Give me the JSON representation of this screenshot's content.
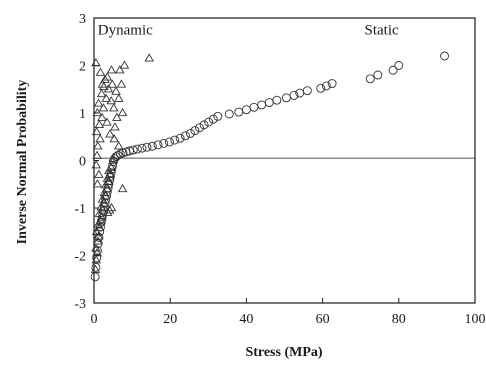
{
  "chart_data": {
    "type": "scatter",
    "title": "",
    "xlabel": "Stress (MPa)",
    "ylabel": "Inverse Normal Probability",
    "xlim": [
      0,
      100
    ],
    "ylim": [
      -3,
      3
    ],
    "xticks": [
      "0",
      "20",
      "40",
      "60",
      "80",
      "100"
    ],
    "yticks": [
      "3",
      "2",
      "1",
      "0",
      "-1",
      "-2",
      "-3"
    ],
    "reference_line_y": 0.05,
    "grid": false,
    "annotations": [
      {
        "text": "Dynamic",
        "x": 1,
        "y": 2.65
      },
      {
        "text": "Static",
        "x": 71,
        "y": 2.65
      }
    ],
    "colors": {
      "axis": "#1a1a1a",
      "marker": "#333333",
      "background": "#ffffff"
    },
    "series": [
      {
        "marker": "triangle",
        "points": [
          [
            0.4,
            -2.3
          ],
          [
            0.6,
            -2.1
          ],
          [
            0.8,
            -1.95
          ],
          [
            0.5,
            -1.85
          ],
          [
            1.0,
            -1.7
          ],
          [
            1.2,
            -1.6
          ],
          [
            0.7,
            -1.5
          ],
          [
            1.5,
            -1.42
          ],
          [
            1.1,
            -1.35
          ],
          [
            1.8,
            -1.28
          ],
          [
            2.0,
            -1.2
          ],
          [
            1.4,
            -1.12
          ],
          [
            2.3,
            -1.05
          ],
          [
            1.9,
            -0.98
          ],
          [
            2.6,
            -0.9
          ],
          [
            2.2,
            -0.82
          ],
          [
            3.0,
            -0.75
          ],
          [
            2.7,
            -0.68
          ],
          [
            3.4,
            -0.6
          ],
          [
            3.1,
            -0.52
          ],
          [
            3.8,
            -0.45
          ],
          [
            3.5,
            -0.38
          ],
          [
            4.2,
            -0.3
          ],
          [
            3.9,
            -0.22
          ],
          [
            4.5,
            -0.15
          ],
          [
            0.9,
            -0.5
          ],
          [
            1.3,
            -0.3
          ],
          [
            0.6,
            -0.1
          ],
          [
            0.8,
            0.1
          ],
          [
            1.0,
            0.3
          ],
          [
            1.6,
            0.45
          ],
          [
            0.7,
            0.6
          ],
          [
            1.4,
            0.75
          ],
          [
            2.1,
            0.9
          ],
          [
            0.9,
            1.0
          ],
          [
            2.5,
            1.1
          ],
          [
            1.2,
            1.2
          ],
          [
            3.2,
            1.3
          ],
          [
            2.0,
            1.4
          ],
          [
            3.8,
            1.5
          ],
          [
            2.6,
            1.55
          ],
          [
            4.5,
            1.25
          ],
          [
            5.2,
            1.1
          ],
          [
            6.0,
            0.9
          ],
          [
            5.5,
            0.7
          ],
          [
            4.2,
            0.55
          ],
          [
            3.4,
            0.8
          ],
          [
            2.9,
            1.7
          ],
          [
            4.8,
            1.6
          ],
          [
            5.8,
            1.45
          ],
          [
            6.5,
            1.3
          ],
          [
            7.2,
            1.6
          ],
          [
            6.8,
            1.9
          ],
          [
            4.6,
            1.9
          ],
          [
            3.5,
            1.75
          ],
          [
            2.2,
            1.6
          ],
          [
            1.7,
            1.85
          ],
          [
            8.0,
            2.0
          ],
          [
            0.5,
            2.05
          ],
          [
            6.5,
            0.3
          ],
          [
            5.3,
            0.45
          ],
          [
            7.5,
            -0.6
          ],
          [
            3.6,
            -1.1
          ],
          [
            4.6,
            -1.0
          ],
          [
            4.1,
            -1.05
          ],
          [
            5.0,
            0.0
          ],
          [
            7.5,
            1.0
          ],
          [
            14.5,
            2.15
          ]
        ]
      },
      {
        "marker": "circle",
        "points": [
          [
            0.3,
            -2.45
          ],
          [
            0.5,
            -2.25
          ],
          [
            0.7,
            -2.05
          ],
          [
            0.9,
            -1.9
          ],
          [
            1.1,
            -1.75
          ],
          [
            1.3,
            -1.62
          ],
          [
            1.5,
            -1.5
          ],
          [
            1.7,
            -1.4
          ],
          [
            1.9,
            -1.3
          ],
          [
            2.1,
            -1.22
          ],
          [
            2.3,
            -1.14
          ],
          [
            2.5,
            -1.06
          ],
          [
            2.7,
            -0.98
          ],
          [
            2.9,
            -0.9
          ],
          [
            3.1,
            -0.82
          ],
          [
            3.3,
            -0.74
          ],
          [
            3.5,
            -0.66
          ],
          [
            3.7,
            -0.58
          ],
          [
            3.9,
            -0.5
          ],
          [
            4.1,
            -0.42
          ],
          [
            4.3,
            -0.34
          ],
          [
            4.5,
            -0.26
          ],
          [
            4.7,
            -0.18
          ],
          [
            4.9,
            -0.1
          ],
          [
            5.1,
            -0.02
          ],
          [
            5.4,
            0.04
          ],
          [
            5.8,
            0.08
          ],
          [
            6.3,
            0.11
          ],
          [
            6.9,
            0.14
          ],
          [
            7.6,
            0.16
          ],
          [
            8.4,
            0.18
          ],
          [
            9.3,
            0.2
          ],
          [
            10.3,
            0.22
          ],
          [
            11.4,
            0.24
          ],
          [
            12.6,
            0.26
          ],
          [
            13.9,
            0.28
          ],
          [
            15.3,
            0.3
          ],
          [
            16.8,
            0.33
          ],
          [
            18.3,
            0.36
          ],
          [
            19.8,
            0.39
          ],
          [
            21.2,
            0.43
          ],
          [
            22.6,
            0.47
          ],
          [
            24.0,
            0.52
          ],
          [
            25.3,
            0.57
          ],
          [
            26.5,
            0.63
          ],
          [
            27.7,
            0.69
          ],
          [
            28.9,
            0.75
          ],
          [
            30.1,
            0.81
          ],
          [
            31.3,
            0.87
          ],
          [
            32.5,
            0.93
          ],
          [
            35.5,
            0.98
          ],
          [
            38.0,
            1.02
          ],
          [
            40.0,
            1.07
          ],
          [
            42.0,
            1.12
          ],
          [
            44.0,
            1.17
          ],
          [
            46.0,
            1.22
          ],
          [
            48.0,
            1.27
          ],
          [
            50.5,
            1.32
          ],
          [
            52.5,
            1.37
          ],
          [
            54.0,
            1.42
          ],
          [
            56.0,
            1.47
          ],
          [
            59.5,
            1.52
          ],
          [
            61.0,
            1.57
          ],
          [
            62.5,
            1.62
          ],
          [
            72.5,
            1.72
          ],
          [
            74.5,
            1.8
          ],
          [
            78.5,
            1.9
          ],
          [
            80.0,
            2.0
          ],
          [
            92.0,
            2.2
          ]
        ]
      }
    ]
  }
}
